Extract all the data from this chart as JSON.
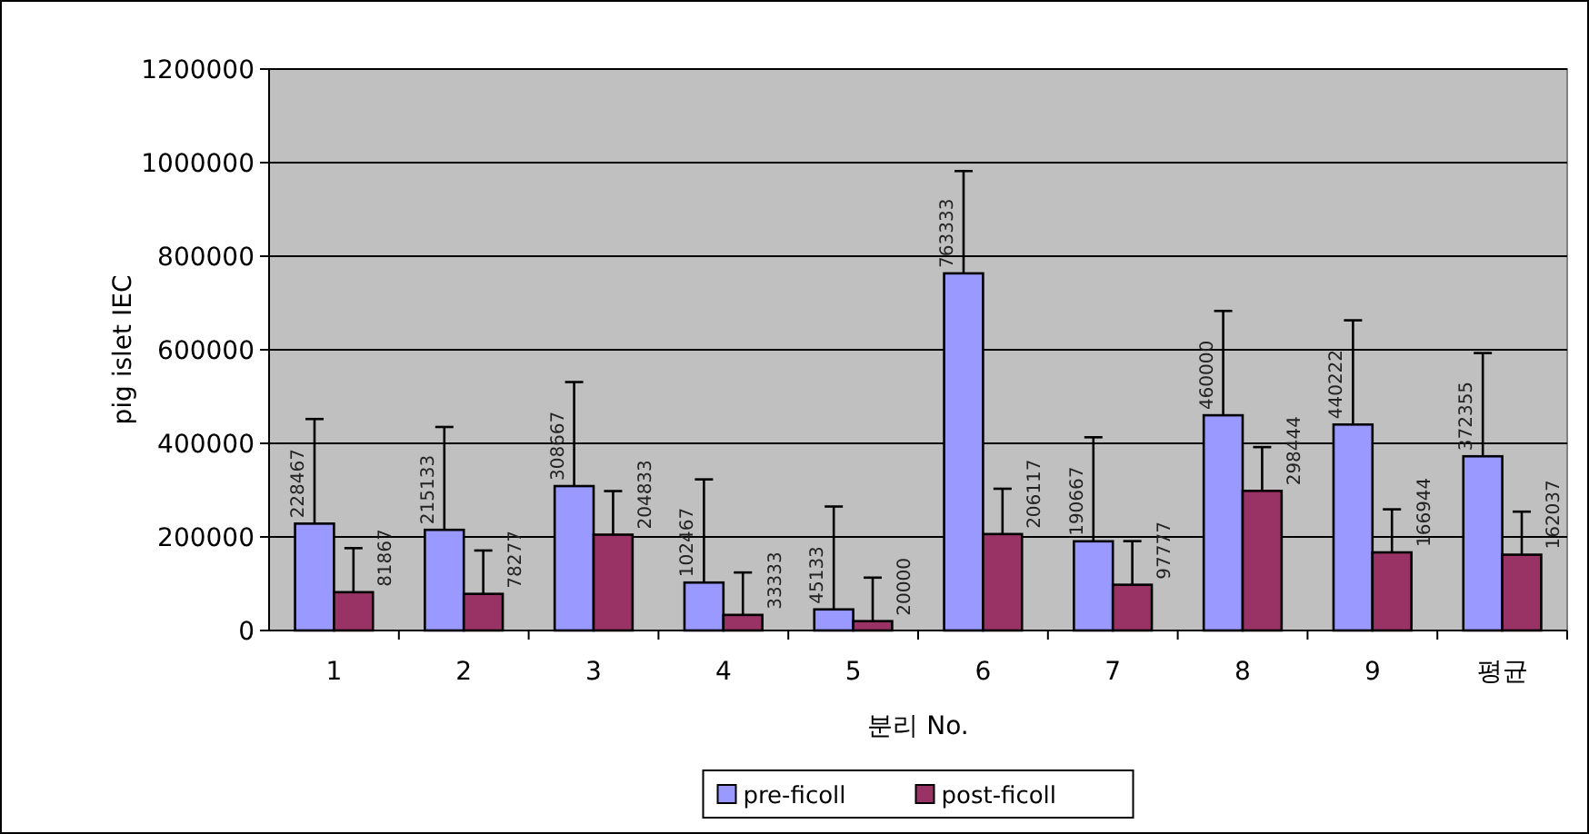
{
  "chart_data": {
    "type": "bar",
    "xlabel": "분리 No.",
    "ylabel": "pig islet IEC",
    "categories": [
      "1",
      "2",
      "3",
      "4",
      "5",
      "6",
      "7",
      "8",
      "9",
      "평균"
    ],
    "series": [
      {
        "name": "pre-ficoll",
        "color": "#9999ff",
        "values": [
          228467,
          215133,
          308667,
          102467,
          45133,
          763333,
          190667,
          460000,
          440222,
          372355
        ],
        "errors": [
          [
            228467,
            452000
          ],
          [
            215133,
            435000
          ],
          [
            308667,
            531000
          ],
          [
            102467,
            323000
          ],
          [
            45133,
            265000
          ],
          [
            763333,
            982000
          ],
          [
            190667,
            413000
          ],
          [
            460000,
            683000
          ],
          [
            440222,
            663000
          ],
          [
            372355,
            593000
          ]
        ]
      },
      {
        "name": "post-ficoll",
        "color": "#993366",
        "values": [
          81867,
          78277,
          204833,
          33333,
          20000,
          206117,
          97777,
          298444,
          166944,
          162037
        ],
        "errors": [
          [
            81867,
            176000
          ],
          [
            78277,
            171000
          ],
          [
            204833,
            298000
          ],
          [
            33333,
            124000
          ],
          [
            20000,
            113000
          ],
          [
            206117,
            303000
          ],
          [
            97777,
            191000
          ],
          [
            298444,
            392000
          ],
          [
            166944,
            259000
          ],
          [
            162037,
            254000
          ]
        ]
      }
    ],
    "ylim": [
      0,
      1200000
    ],
    "yticks": [
      0,
      200000,
      400000,
      600000,
      800000,
      1000000,
      1200000
    ],
    "grid": "y",
    "legend": "bottom",
    "data_labels": true
  }
}
